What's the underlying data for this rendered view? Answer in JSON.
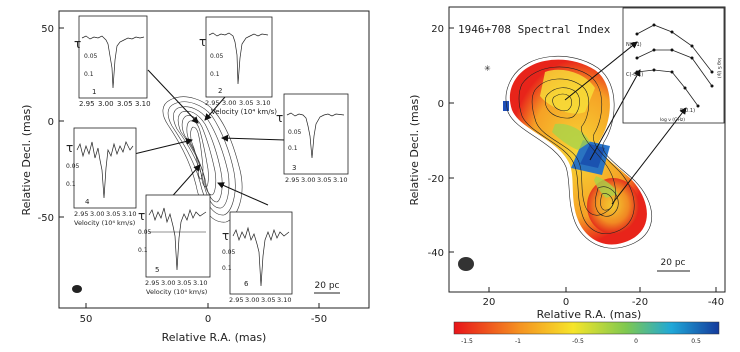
{
  "left_panel": {
    "x_axis_label": "Relative R.A. (mas)",
    "y_axis_label": "Relative Decl. (mas)",
    "x_ticks": [
      "50",
      "0",
      "-50"
    ],
    "y_ticks": [
      "50",
      "0",
      "-50"
    ],
    "scale_bar": "20 pc",
    "insets": [
      {
        "number": "1",
        "tau": "τ",
        "y_ticks": [
          "0.05",
          "0.1"
        ],
        "x_ticks": [
          "2.95",
          "3.00",
          "3.05",
          "3.10"
        ],
        "x_label": ""
      },
      {
        "number": "2",
        "tau": "τ",
        "y_ticks": [
          "0.05",
          "0.1"
        ],
        "x_ticks": [
          "2.95",
          "3.00",
          "3.05",
          "3.10"
        ],
        "x_label": "Velocity (10⁴ km/s)"
      },
      {
        "number": "3",
        "tau": "τ",
        "y_ticks": [
          "0.05",
          "0.1"
        ],
        "x_ticks": [
          "2.95",
          "3.00",
          "3.05",
          "3.10"
        ],
        "x_label": ""
      },
      {
        "number": "4",
        "tau": "τ",
        "y_ticks": [
          "0.05",
          "0.1"
        ],
        "x_ticks": [
          "2.95",
          "3.00",
          "3.05",
          "3.10"
        ],
        "x_label": "Velocity (10⁴ km/s)"
      },
      {
        "number": "5",
        "tau": "τ",
        "y_ticks": [
          "0.05",
          "0.1"
        ],
        "x_ticks": [
          "2.95",
          "3.00",
          "3.05",
          "3.10"
        ],
        "x_label": "Velocity (10⁴ km/s)"
      },
      {
        "number": "6",
        "tau": "τ",
        "y_ticks": [
          "0.05",
          "0.1"
        ],
        "x_ticks": [
          "2.95",
          "3.00",
          "3.05",
          "3.10"
        ],
        "x_label": ""
      }
    ]
  },
  "right_panel": {
    "title": "1946+708 Spectral Index",
    "x_axis_label": "Relative R.A. (mas)",
    "y_axis_label": "Relative Decl. (mas)",
    "x_ticks": [
      "20",
      "0",
      "-20",
      "-40"
    ],
    "y_ticks": [
      "20",
      "0",
      "-20",
      "-40"
    ],
    "scale_bar": "20 pc",
    "inset_labels": [
      "N(0.1)",
      "C(-0.1)",
      "S(0.1)"
    ],
    "inset_x_label": "log ν (GHz)",
    "inset_y_label": "log S (Jy)",
    "colorbar_ticks": [
      "-1.5",
      "-1",
      "-0.5",
      "0",
      "0.5"
    ]
  }
}
